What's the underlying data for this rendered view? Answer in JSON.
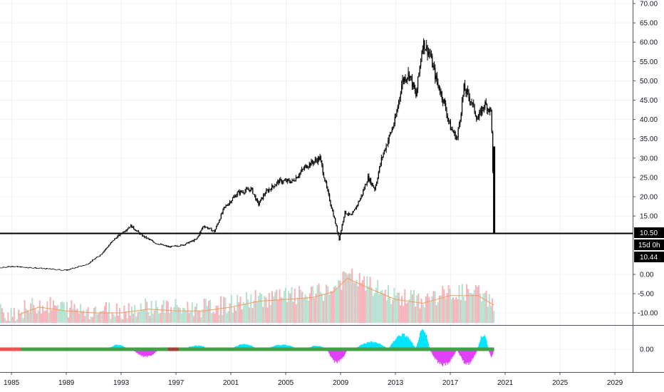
{
  "chart_data": [
    {
      "type": "candlestick",
      "panel": "price",
      "ylim": [
        0,
        70
      ],
      "yticks": [
        "15.00",
        "20.00",
        "25.00",
        "30.00",
        "35.00",
        "40.00",
        "45.00",
        "50.00",
        "55.00",
        "60.00",
        "65.00",
        "70.00"
      ],
      "horizontal_line": 10.5,
      "labels": {
        "price_tag": "10.50",
        "countdown": "15d 0h",
        "last_tag": "10.44"
      },
      "x_years": [
        "1985",
        "1989",
        "1993",
        "1997",
        "2001",
        "2005",
        "2009",
        "2013",
        "2017",
        "2021",
        "2025",
        "2029"
      ],
      "series": [
        {
          "name": "",
          "color": "#000000",
          "x": [
            1983.0,
            1985.0,
            1987.0,
            1989.0,
            1990.5,
            1991.5,
            1992.5,
            1993.7,
            1994.5,
            1995.5,
            1996.5,
            1997.5,
            1998.5,
            1999.0,
            1999.8,
            2000.5,
            2001.5,
            2002.5,
            2003.0,
            2003.5,
            2004.5,
            2005.5,
            2006.5,
            2007.5,
            2008.0,
            2008.5,
            2008.9,
            2009.3,
            2009.8,
            2010.5,
            2011.0,
            2011.5,
            2012.0,
            2012.5,
            2013.0,
            2013.5,
            2014.0,
            2014.5,
            2015.0,
            2015.5,
            2016.0,
            2016.5,
            2017.0,
            2017.5,
            2018.0,
            2018.5,
            2019.0,
            2019.5,
            2020.0,
            2020.2
          ],
          "y": [
            1.0,
            2.0,
            1.5,
            1.0,
            2.5,
            5.0,
            9.0,
            12.5,
            10.0,
            8.0,
            7.0,
            7.5,
            9.0,
            12.5,
            11.0,
            17.0,
            21.0,
            22.0,
            18.0,
            21.0,
            24.0,
            24.0,
            28.0,
            30.0,
            22.0,
            15.0,
            9.0,
            16.0,
            15.0,
            20.0,
            25.0,
            22.0,
            30.0,
            35.0,
            40.0,
            50.0,
            52.0,
            46.0,
            60.0,
            57.0,
            50.0,
            45.0,
            38.0,
            35.0,
            48.0,
            45.0,
            40.0,
            44.0,
            42.0,
            10.5
          ]
        }
      ]
    },
    {
      "type": "bar",
      "panel": "volume",
      "ylim": [
        -12,
        2
      ],
      "yticks": [
        "0.00",
        "-5.00",
        "-10.00"
      ],
      "series": [
        {
          "name": "",
          "type": "bar",
          "colors": [
            "#f5a5ad",
            "#a8dcc8"
          ]
        },
        {
          "name": "",
          "type": "line",
          "color": "#f39b5b",
          "x": [
            1985.5,
            1987.0,
            1989.0,
            1991.0,
            1993.0,
            1995.0,
            1997.0,
            1999.0,
            2001.0,
            2003.0,
            2005.0,
            2007.0,
            2008.5,
            2009.5,
            2011.0,
            2013.0,
            2015.0,
            2017.0,
            2019.0,
            2020.2
          ],
          "y": [
            -10.5,
            -8.5,
            -9.5,
            -10.0,
            -10.0,
            -9.0,
            -9.5,
            -9.5,
            -8.5,
            -7.0,
            -6.5,
            -6.0,
            -4.5,
            -1.0,
            -3.5,
            -6.5,
            -7.5,
            -5.5,
            -5.5,
            -8.0
          ]
        }
      ]
    },
    {
      "type": "histogram",
      "panel": "oscillator",
      "yticks": [
        "0.00"
      ],
      "colors": {
        "positive": "#00e5ff",
        "negative": "#e040fb",
        "baseline": "#43a047",
        "baseline_alt": "#ef5350"
      }
    }
  ]
}
